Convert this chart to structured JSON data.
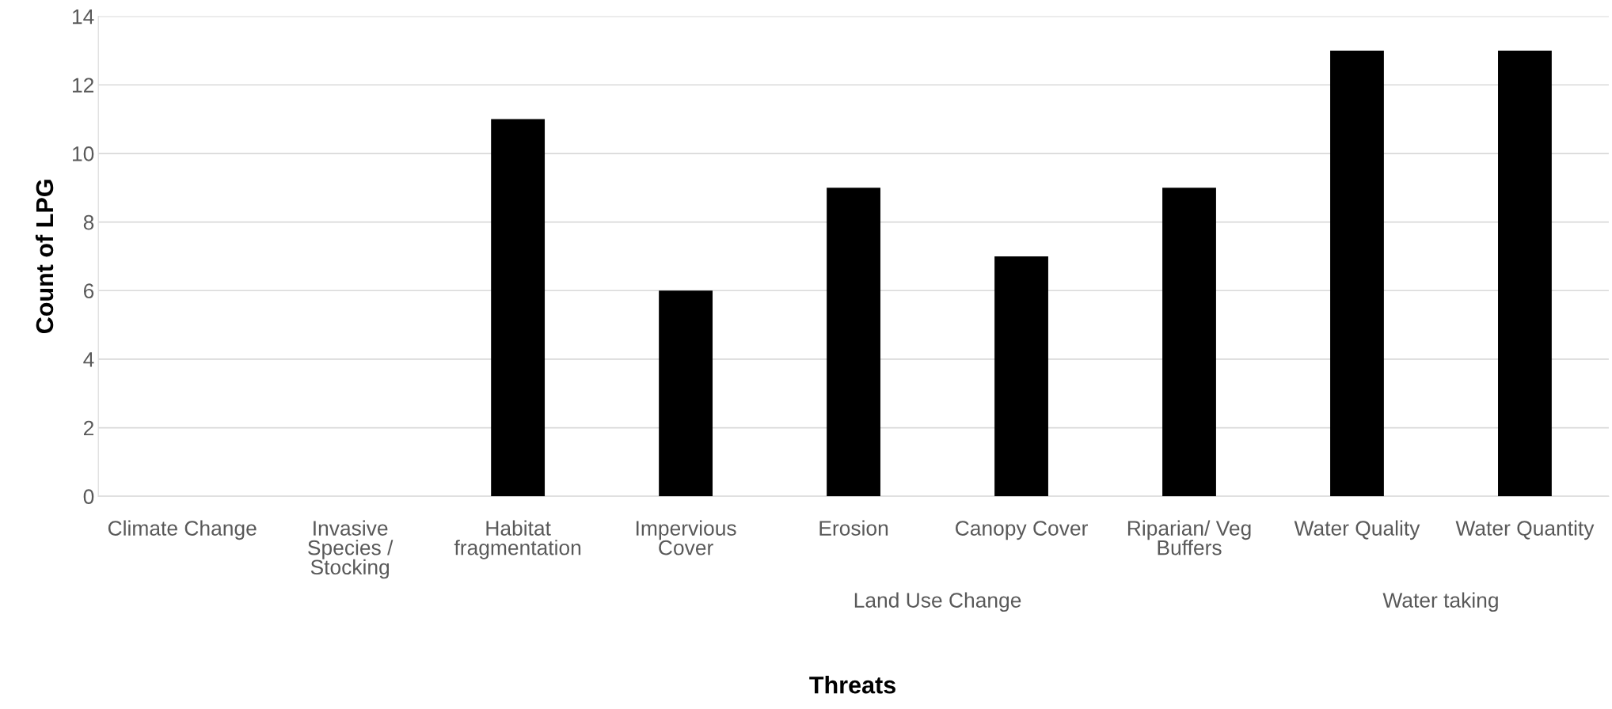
{
  "chart_data": {
    "type": "bar",
    "xlabel": "Threats",
    "ylabel": "Count of LPG",
    "categories": [
      "Climate Change",
      "Invasive Species / Stocking",
      "Habitat fragmentation",
      "Impervious Cover",
      "Erosion",
      "Canopy Cover",
      "Riparian/ Veg Buffers",
      "Water Quality",
      "Water Quantity"
    ],
    "values": [
      0,
      0,
      11,
      6,
      9,
      7,
      9,
      13,
      13
    ],
    "color": "#000000",
    "ylim": [
      0,
      14
    ],
    "yticks": [
      0,
      2,
      4,
      6,
      8,
      10,
      12,
      14
    ],
    "grid": "y",
    "annotations": [
      "Land Use Change",
      "Water taking"
    ]
  }
}
